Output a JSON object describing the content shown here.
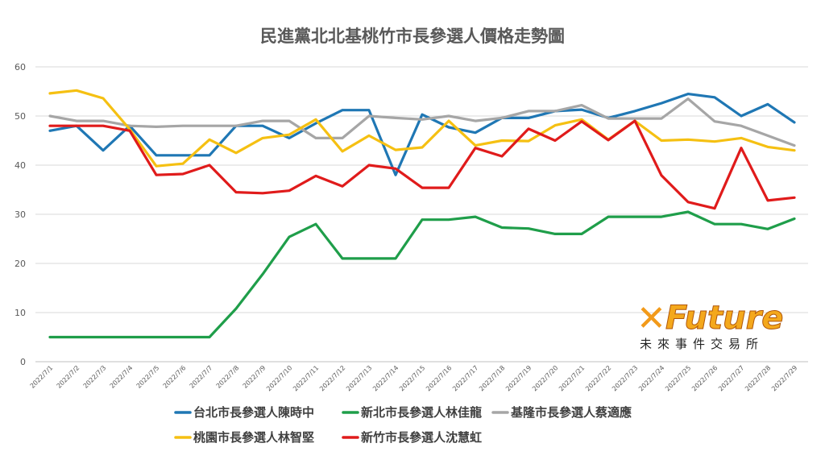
{
  "chart_data": {
    "type": "line",
    "title": "民進黨北北基桃竹市長參選人價格走勢圖",
    "xlabel": "",
    "ylabel": "",
    "ylim": [
      0,
      60
    ],
    "yticks": [
      0,
      10,
      20,
      30,
      40,
      50,
      60
    ],
    "grid": true,
    "legend_position": "bottom",
    "categories": [
      "2022/7/1",
      "2022/7/2",
      "2022/7/3",
      "2022/7/4",
      "2022/7/5",
      "2022/7/6",
      "2022/7/7",
      "2022/7/8",
      "2022/7/9",
      "2022/7/10",
      "2022/7/11",
      "2022/7/12",
      "2022/7/13",
      "2022/7/14",
      "2022/7/15",
      "2022/7/16",
      "2022/7/17",
      "2022/7/18",
      "2022/7/19",
      "2022/7/20",
      "2022/7/21",
      "2022/7/22",
      "2022/7/23",
      "2022/7/24",
      "2022/7/25",
      "2022/7/26",
      "2022/7/27",
      "2022/7/28",
      "2022/7/29"
    ],
    "series": [
      {
        "name": "台北市長參選人陳時中",
        "color": "#1f77b4",
        "values": [
          47,
          48,
          43,
          48,
          42,
          42,
          42,
          48,
          48,
          45.5,
          48.5,
          51.2,
          51.2,
          38,
          50.3,
          47.7,
          46.6,
          49.6,
          49.6,
          51,
          51.3,
          49.6,
          51,
          52.6,
          54.5,
          53.8,
          50,
          52.4,
          48.7
        ]
      },
      {
        "name": "新北市長參選人林佳龍",
        "color": "#1f9e4a",
        "values": [
          5,
          5,
          5,
          5,
          5,
          5,
          5,
          10.8,
          17.8,
          25.4,
          28,
          21,
          21,
          21,
          28.9,
          28.9,
          29.5,
          27.3,
          27.1,
          26,
          26,
          29.5,
          29.5,
          29.5,
          30.5,
          28,
          28,
          27,
          29.1
        ]
      },
      {
        "name": "基隆市長參選人蔡適應",
        "color": "#a6a6a6",
        "values": [
          50,
          49,
          49,
          48,
          47.8,
          48,
          48,
          48,
          49,
          49,
          45.5,
          45.5,
          50,
          49.6,
          49.3,
          50,
          49,
          49.6,
          51,
          51,
          52.2,
          49.5,
          49.5,
          49.5,
          53.5,
          48.9,
          48,
          46,
          44
        ]
      },
      {
        "name": "桃園市長參選人林智堅",
        "color": "#f5c012",
        "values": [
          54.6,
          55.2,
          53.6,
          47.3,
          39.8,
          40.3,
          45.2,
          42.5,
          45.5,
          46.2,
          49.3,
          42.8,
          46,
          43.1,
          43.6,
          49,
          44,
          45,
          44.9,
          48.1,
          49.3,
          45.2,
          49,
          45,
          45.2,
          44.8,
          45.5,
          43.7,
          43
        ]
      },
      {
        "name": "新竹市長參選人沈慧虹",
        "color": "#e01b1b",
        "values": [
          48,
          48,
          48,
          47,
          38,
          38.2,
          40,
          34.5,
          34.3,
          34.8,
          37.8,
          35.7,
          40,
          39.3,
          35.4,
          35.4,
          43.5,
          41.8,
          47.4,
          45,
          48.9,
          45.1,
          49,
          37.9,
          32.5,
          31.2,
          43.5,
          32.8,
          33.4
        ]
      }
    ]
  },
  "logo": {
    "name": "Future",
    "subtitle": "未來事件交易所"
  }
}
